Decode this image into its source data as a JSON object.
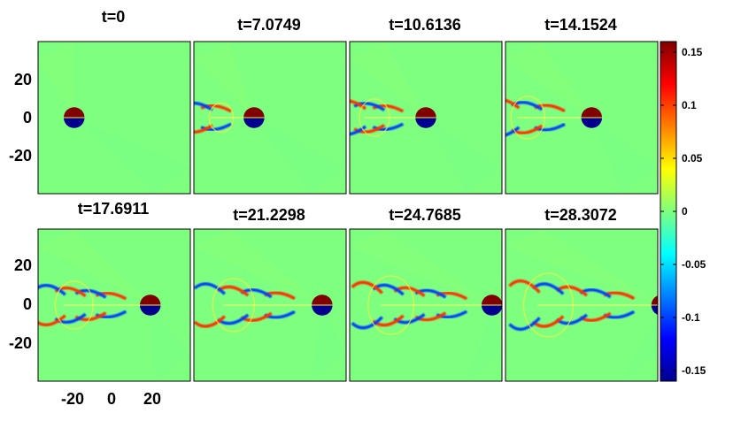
{
  "chart_data": {
    "type": "heatmap",
    "layout": "2x4 small multiples",
    "panels": [
      {
        "title": "t=0",
        "t": 0,
        "dipole_x": -20,
        "wake_extent": 0
      },
      {
        "title": "t=7.0749",
        "t": 7.0749,
        "dipole_x": -8,
        "wake_extent": 0.35
      },
      {
        "title": "t=10.6136",
        "t": 10.6136,
        "dipole_x": 0,
        "wake_extent": 0.5
      },
      {
        "title": "t=14.1524",
        "t": 14.1524,
        "dipole_x": 5,
        "wake_extent": 0.6
      },
      {
        "title": "t=17.6911",
        "t": 17.6911,
        "dipole_x": 18,
        "wake_extent": 0.7
      },
      {
        "title": "t=21.2298",
        "t": 21.2298,
        "dipole_x": 26,
        "wake_extent": 0.8
      },
      {
        "title": "t=24.7685",
        "t": 24.7685,
        "dipole_x": 33,
        "wake_extent": 0.9
      },
      {
        "title": "t=28.3072",
        "t": 28.3072,
        "dipole_x": 40,
        "wake_extent": 1.0
      }
    ],
    "x_ticks": [
      -20,
      0,
      20
    ],
    "y_ticks": [
      20,
      0,
      -20
    ],
    "xlim": [
      -38,
      38
    ],
    "ylim": [
      -38,
      38
    ],
    "colorbar": {
      "ticks": [
        "0.15",
        "0.1",
        "0.05",
        "0",
        "-0.05",
        "-0.1",
        "-0.15"
      ],
      "tick_values": [
        0.15,
        0.1,
        0.05,
        0,
        -0.05,
        -0.1,
        -0.15
      ],
      "range": [
        -0.16,
        0.16
      ],
      "colormap": "jet"
    },
    "grid": false,
    "colors": {
      "positive": "#800000",
      "negative": "#00008f",
      "background": "#7fff7f"
    }
  }
}
